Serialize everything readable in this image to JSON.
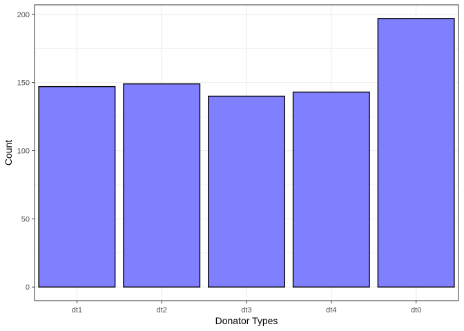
{
  "chart_data": {
    "type": "bar",
    "categories": [
      "dt1",
      "dt2",
      "dt3",
      "dt4",
      "dt0"
    ],
    "values": [
      147,
      149,
      140,
      143,
      197
    ],
    "title": "",
    "xlabel": "Donator Types",
    "ylabel": "Count",
    "ylim": [
      -10,
      207
    ],
    "yticks": [
      0,
      50,
      100,
      150,
      200
    ],
    "grid": true,
    "bar_fill": "#8080ff",
    "bar_stroke": "#000000",
    "grid_color": "#ebebeb",
    "panel_border": "#333333"
  }
}
